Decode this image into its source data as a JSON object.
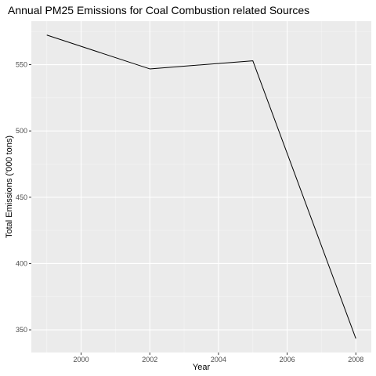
{
  "chart_data": {
    "type": "line",
    "title": "Annual PM25 Emissions for Coal Combustion related Sources",
    "xlabel": "Year",
    "ylabel": "Total Emissions ('000 tons)",
    "x": [
      1999,
      2002,
      2005,
      2008
    ],
    "series": [
      {
        "values": [
          572.3,
          546.8,
          552.9,
          343.4
        ]
      }
    ],
    "xlim": [
      1998.55,
      2008.45
    ],
    "ylim": [
      332.9,
      582.8
    ],
    "xticks": [
      2000,
      2002,
      2004,
      2006,
      2008
    ],
    "xtick_labels": [
      "2000",
      "2002",
      "2004",
      "2006",
      "2008"
    ],
    "yticks": [
      350,
      400,
      450,
      500,
      550
    ],
    "ytick_labels": [
      "350",
      "400",
      "450",
      "500",
      "550"
    ],
    "x_minor_ticks": [
      1999,
      2001,
      2003,
      2005,
      2007
    ],
    "y_minor_ticks": [
      375,
      425,
      475,
      525,
      575
    ],
    "grid": true,
    "legend": "none",
    "colors": {
      "panel_background": "#ebebeb",
      "grid_major": "#ffffff",
      "grid_minor": "#f5f5f5",
      "line": "#000000",
      "tick_color": "#333333"
    }
  }
}
